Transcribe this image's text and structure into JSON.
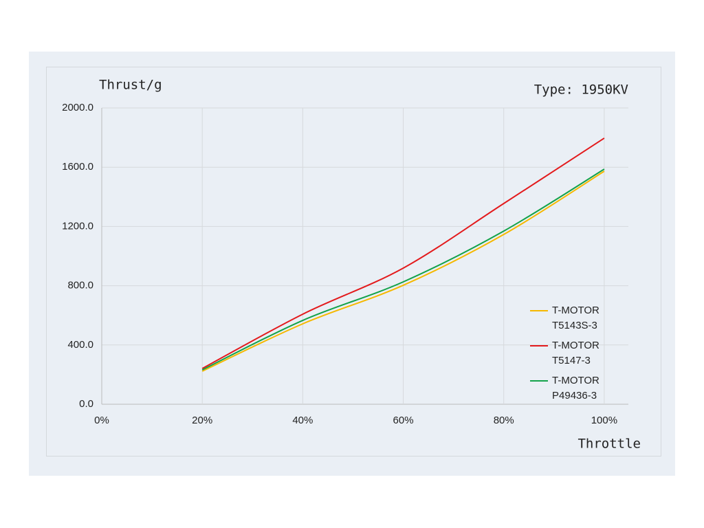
{
  "chart_data": {
    "type": "line",
    "title": "Type: 1950KV",
    "y_label": "Thrust/g",
    "x_label": "Throttle",
    "series": [
      {
        "name": "T-MOTOR T5143S-3",
        "color": "#f5b800",
        "x": [
          20,
          40,
          60,
          80,
          100
        ],
        "values": [
          223,
          543,
          803,
          1146,
          1573
        ]
      },
      {
        "name": "T-MOTOR T5147-3",
        "color": "#e31a1c",
        "x": [
          20,
          40,
          60,
          80,
          100
        ],
        "values": [
          241,
          608,
          919,
          1355,
          1796
        ]
      },
      {
        "name": "T-MOTOR P49436-3",
        "color": "#13a24a",
        "x": [
          20,
          40,
          60,
          80,
          100
        ],
        "values": [
          232,
          566,
          826,
          1169,
          1587
        ]
      }
    ],
    "xlim": [
      0,
      104.8
    ],
    "xticks": [
      {
        "value": 0,
        "label": "0%"
      },
      {
        "value": 20,
        "label": "20%"
      },
      {
        "value": 40,
        "label": "40%"
      },
      {
        "value": 60,
        "label": "60%"
      },
      {
        "value": 80,
        "label": "80%"
      },
      {
        "value": 100,
        "label": "100%"
      }
    ],
    "ylim": [
      0,
      2000
    ],
    "yticks": [
      {
        "value": 0,
        "label": "0.0"
      },
      {
        "value": 400,
        "label": "400.0"
      },
      {
        "value": 800,
        "label": "800.0"
      },
      {
        "value": 1200,
        "label": "1200.0"
      },
      {
        "value": 1600,
        "label": "1600.0"
      },
      {
        "value": 2000,
        "label": "2000.0"
      }
    ],
    "grid": true
  }
}
